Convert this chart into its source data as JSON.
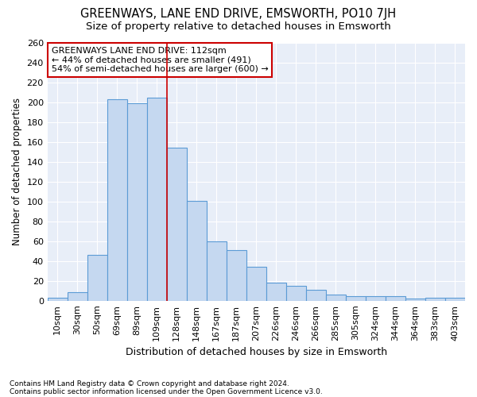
{
  "title": "GREENWAYS, LANE END DRIVE, EMSWORTH, PO10 7JH",
  "subtitle": "Size of property relative to detached houses in Emsworth",
  "xlabel": "Distribution of detached houses by size in Emsworth",
  "ylabel": "Number of detached properties",
  "categories": [
    "10sqm",
    "30sqm",
    "50sqm",
    "69sqm",
    "89sqm",
    "109sqm",
    "128sqm",
    "148sqm",
    "167sqm",
    "187sqm",
    "207sqm",
    "226sqm",
    "246sqm",
    "266sqm",
    "285sqm",
    "305sqm",
    "324sqm",
    "344sqm",
    "364sqm",
    "383sqm",
    "403sqm"
  ],
  "values": [
    3,
    9,
    46,
    203,
    199,
    205,
    154,
    101,
    60,
    51,
    34,
    18,
    15,
    11,
    6,
    5,
    5,
    5,
    2,
    3,
    3
  ],
  "bar_color": "#c5d8f0",
  "bar_edge_color": "#5b9bd5",
  "background_color": "#e8eef8",
  "grid_color": "#ffffff",
  "vline_x_index": 5,
  "vline_color": "#cc0000",
  "annotation_text": "GREENWAYS LANE END DRIVE: 112sqm\n← 44% of detached houses are smaller (491)\n54% of semi-detached houses are larger (600) →",
  "annotation_box_color": "#ffffff",
  "annotation_box_edge": "#cc0000",
  "footnote1": "Contains HM Land Registry data © Crown copyright and database right 2024.",
  "footnote2": "Contains public sector information licensed under the Open Government Licence v3.0.",
  "ylim": [
    0,
    260
  ],
  "yticks": [
    0,
    20,
    40,
    60,
    80,
    100,
    120,
    140,
    160,
    180,
    200,
    220,
    240,
    260
  ],
  "title_fontsize": 10.5,
  "subtitle_fontsize": 9.5,
  "xlabel_fontsize": 9,
  "ylabel_fontsize": 8.5,
  "tick_fontsize": 8,
  "annot_fontsize": 8
}
